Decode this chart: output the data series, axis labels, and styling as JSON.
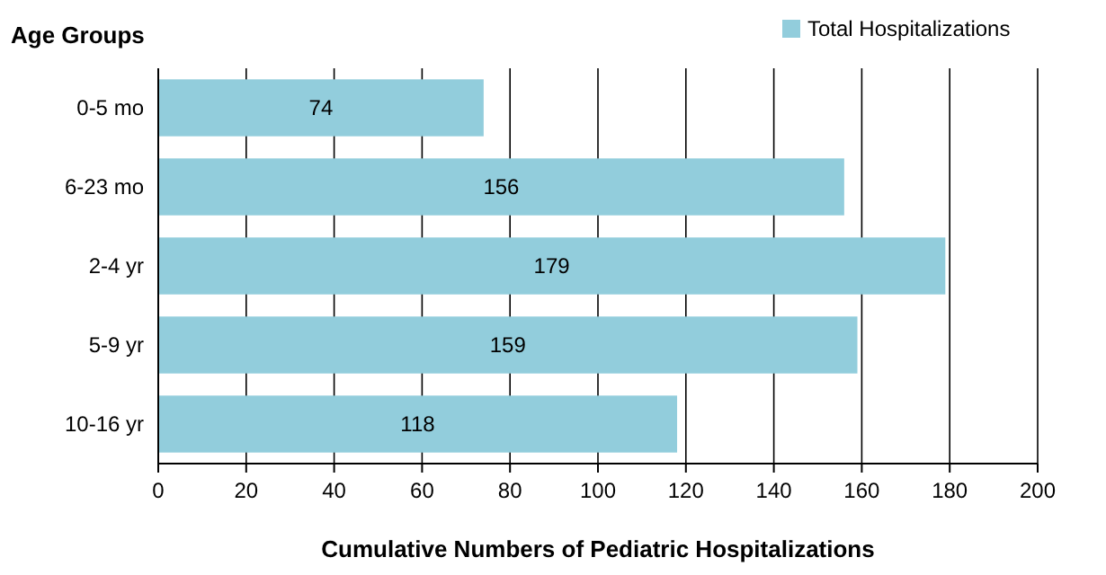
{
  "chart_data": {
    "type": "bar",
    "orientation": "horizontal",
    "ylabel": "Age Groups",
    "xlabel": "Cumulative Numbers of Pediatric Hospitalizations",
    "categories": [
      "0-5 mo",
      "6-23 mo",
      "2-4 yr",
      "5-9 yr",
      "10-16 yr"
    ],
    "series": [
      {
        "name": "Total Hospitalizations",
        "color": "#92cddc",
        "values": [
          74,
          156,
          179,
          159,
          118
        ]
      }
    ],
    "xlim": [
      0,
      200
    ],
    "xticks": [
      0,
      20,
      40,
      60,
      80,
      100,
      120,
      140,
      160,
      180,
      200
    ],
    "grid": "x",
    "legend": "top right",
    "data_labels": true
  }
}
